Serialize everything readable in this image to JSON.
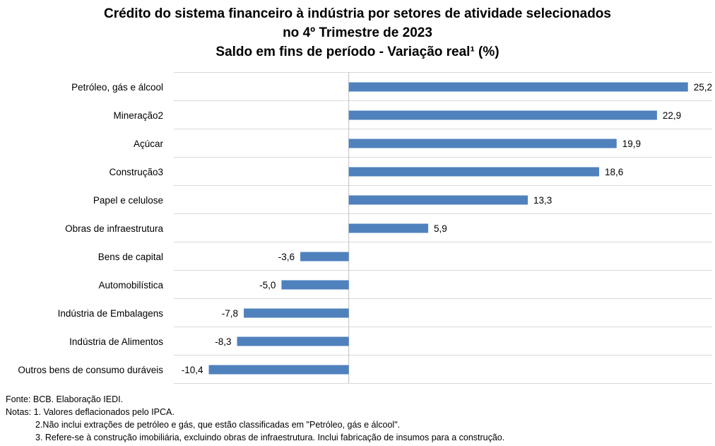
{
  "chart_data": {
    "type": "bar",
    "orientation": "horizontal",
    "title": "Crédito do sistema financeiro à indústria por setores de atividade selecionados",
    "title_line2": "no 4º Trimestre de 2023",
    "subtitle": "Saldo em fins de período - Variação real¹ (%)",
    "categories": [
      "Petróleo, gás e álcool",
      "Mineração2",
      "Açúcar",
      "Construção3",
      "Papel e celulose",
      "Obras de infraestrutura",
      "Bens de capital",
      "Automobilística",
      "Indústria de Embalagens",
      "Indústria de Alimentos",
      "Outros bens de consumo duráveis"
    ],
    "values": [
      25.2,
      22.9,
      19.9,
      18.6,
      13.3,
      5.9,
      -3.6,
      -5.0,
      -7.8,
      -8.3,
      -10.4
    ],
    "value_labels": [
      "25,2",
      "22,9",
      "19,9",
      "18,6",
      "13,3",
      "5,9",
      "-3,6",
      "-5,0",
      "-7,8",
      "-8,3",
      "-10,4"
    ],
    "xlim": [
      -13,
      27
    ],
    "grid": "horizontal separators between categories",
    "bar_color": "#4F81BD",
    "grid_color": "#D9D9D9",
    "axis_color": "#BFBFBF",
    "legend": "none"
  },
  "notes": {
    "source": "Fonte: BCB. Elaboração IEDI.",
    "note1": "Notas: 1. Valores deflacionados pelo IPCA.",
    "note2": "2.Não inclui extrações de petróleo e gás, que estão classificadas em \"Petróleo, gás e álcool\".",
    "note3": "3. Refere-se à construção imobiliária, excluindo obras de infraestrutura. Inclui fabricação de insumos para a construção."
  }
}
